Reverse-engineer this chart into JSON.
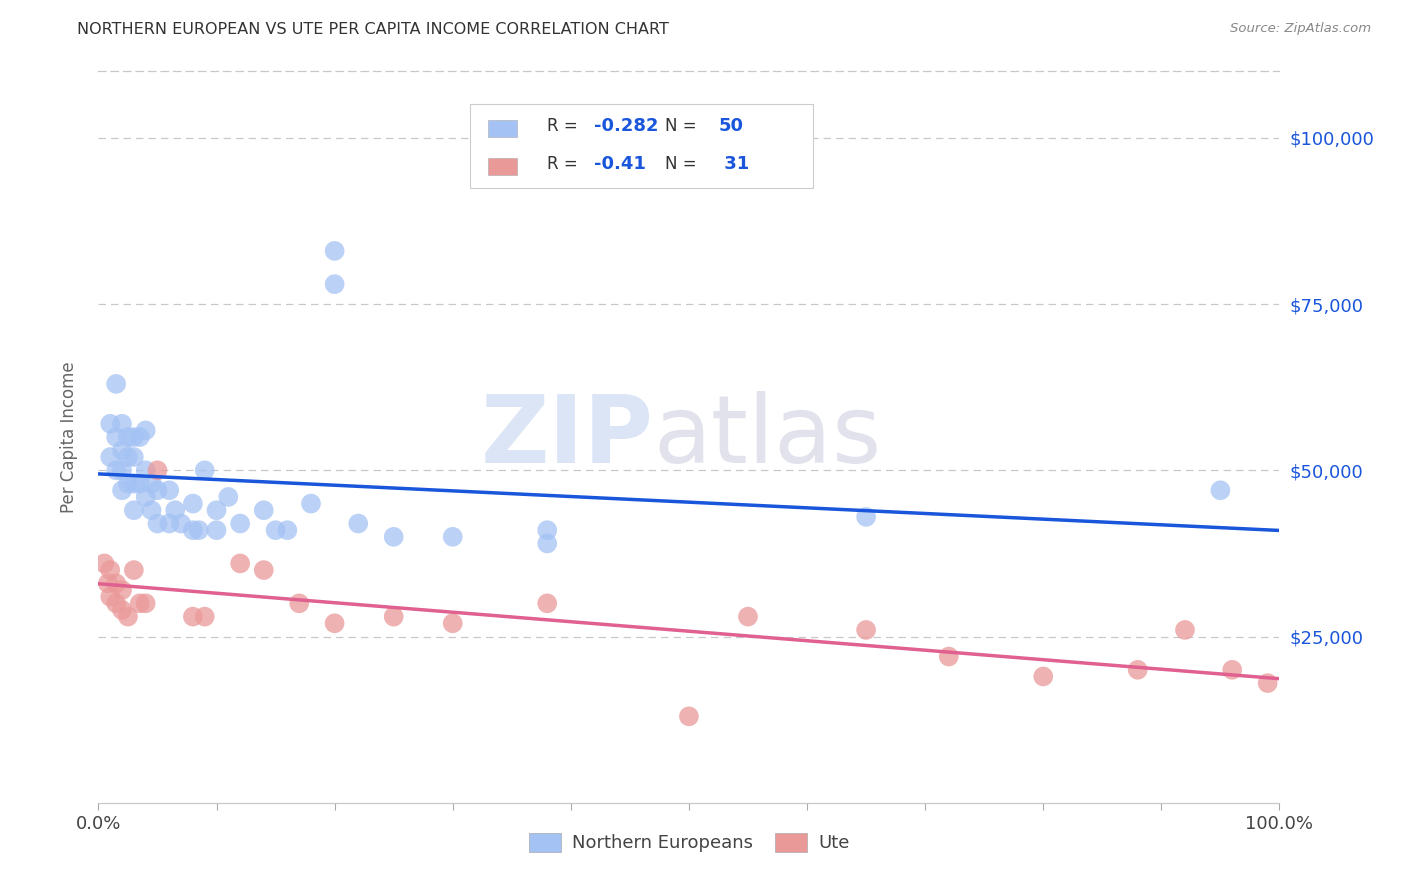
{
  "title": "NORTHERN EUROPEAN VS UTE PER CAPITA INCOME CORRELATION CHART",
  "source": "Source: ZipAtlas.com",
  "ylabel": "Per Capita Income",
  "watermark_zip": "ZIP",
  "watermark_atlas": "atlas",
  "blue_R": -0.282,
  "blue_N": 50,
  "pink_R": -0.41,
  "pink_N": 31,
  "blue_color": "#a4c2f4",
  "pink_color": "#ea9999",
  "blue_line_color": "#1a56db",
  "pink_line_color": "#e06090",
  "right_axis_color": "#1a56db",
  "ytick_labels": [
    "$25,000",
    "$50,000",
    "$75,000",
    "$100,000"
  ],
  "ytick_values": [
    25000,
    50000,
    75000,
    100000
  ],
  "ymin": 0,
  "ymax": 110000,
  "xmin": 0.0,
  "xmax": 1.0,
  "legend_label_blue": "Northern Europeans",
  "legend_label_pink": "Ute",
  "blue_scatter_x": [
    0.01,
    0.01,
    0.015,
    0.015,
    0.015,
    0.02,
    0.02,
    0.02,
    0.02,
    0.025,
    0.025,
    0.025,
    0.03,
    0.03,
    0.03,
    0.03,
    0.035,
    0.035,
    0.04,
    0.04,
    0.04,
    0.045,
    0.045,
    0.05,
    0.05,
    0.06,
    0.06,
    0.065,
    0.07,
    0.08,
    0.08,
    0.085,
    0.09,
    0.1,
    0.1,
    0.11,
    0.12,
    0.14,
    0.15,
    0.16,
    0.18,
    0.2,
    0.2,
    0.22,
    0.25,
    0.3,
    0.38,
    0.38,
    0.65,
    0.95
  ],
  "blue_scatter_y": [
    57000,
    52000,
    63000,
    55000,
    50000,
    57000,
    53000,
    50000,
    47000,
    55000,
    52000,
    48000,
    55000,
    52000,
    48000,
    44000,
    55000,
    48000,
    56000,
    50000,
    46000,
    48000,
    44000,
    47000,
    42000,
    47000,
    42000,
    44000,
    42000,
    45000,
    41000,
    41000,
    50000,
    44000,
    41000,
    46000,
    42000,
    44000,
    41000,
    41000,
    45000,
    83000,
    78000,
    42000,
    40000,
    40000,
    41000,
    39000,
    43000,
    47000
  ],
  "pink_scatter_x": [
    0.005,
    0.008,
    0.01,
    0.01,
    0.015,
    0.015,
    0.02,
    0.02,
    0.025,
    0.03,
    0.035,
    0.04,
    0.05,
    0.08,
    0.09,
    0.12,
    0.14,
    0.17,
    0.2,
    0.25,
    0.3,
    0.38,
    0.5,
    0.55,
    0.65,
    0.72,
    0.8,
    0.88,
    0.92,
    0.96,
    0.99
  ],
  "pink_scatter_y": [
    36000,
    33000,
    35000,
    31000,
    33000,
    30000,
    32000,
    29000,
    28000,
    35000,
    30000,
    30000,
    50000,
    28000,
    28000,
    36000,
    35000,
    30000,
    27000,
    28000,
    27000,
    30000,
    13000,
    28000,
    26000,
    22000,
    19000,
    20000,
    26000,
    20000,
    18000
  ]
}
